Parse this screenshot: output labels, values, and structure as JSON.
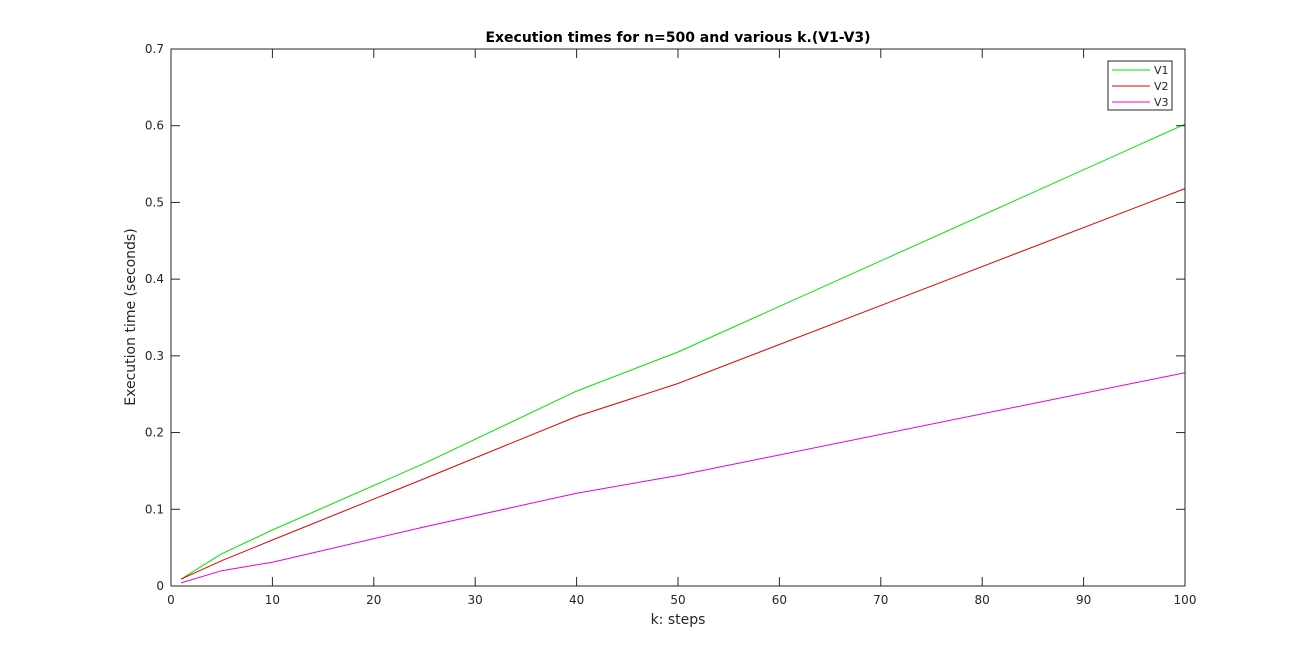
{
  "chart_data": {
    "type": "line",
    "title": "Execution times for n=500 and various k.(V1-V3)",
    "xlabel": "k: steps",
    "ylabel": "Execution time (seconds)",
    "xlim": [
      0,
      100
    ],
    "ylim": [
      0,
      0.7
    ],
    "xticks": [
      0,
      10,
      20,
      30,
      40,
      50,
      60,
      70,
      80,
      90,
      100
    ],
    "yticks": [
      0,
      0.1,
      0.2,
      0.3,
      0.4,
      0.5,
      0.6,
      0.7
    ],
    "xtick_labels": [
      "0",
      "10",
      "20",
      "30",
      "40",
      "50",
      "60",
      "70",
      "80",
      "90",
      "100"
    ],
    "ytick_labels": [
      "0",
      "0.1",
      "0.2",
      "0.3",
      "0.4",
      "0.5",
      "0.6",
      "0.7"
    ],
    "x": [
      1,
      5,
      10,
      25,
      40,
      50,
      100
    ],
    "series": [
      {
        "name": "V1",
        "color": "#00e600",
        "values": [
          0.009,
          0.042,
          0.073,
          0.16,
          0.254,
          0.305,
          0.602
        ]
      },
      {
        "name": "V2",
        "color": "#e60000",
        "values": [
          0.009,
          0.033,
          0.06,
          0.14,
          0.221,
          0.264,
          0.518
        ]
      },
      {
        "name": "V3",
        "color": "#e600e6",
        "values": [
          0.004,
          0.02,
          0.031,
          0.077,
          0.121,
          0.144,
          0.278
        ]
      }
    ],
    "grid": false,
    "legend_position": "top-right"
  }
}
